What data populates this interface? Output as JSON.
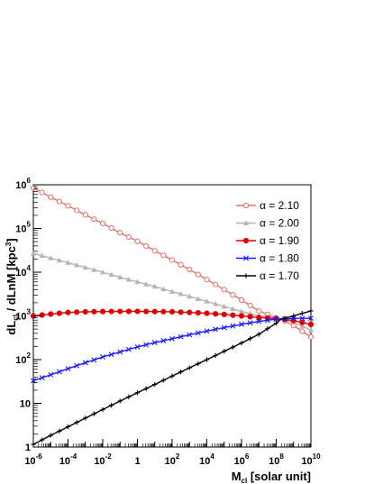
{
  "chart_data": {
    "type": "line",
    "xscale": "log",
    "yscale": "log",
    "xlim": [
      1e-06,
      10000000000.0
    ],
    "ylim": [
      1,
      1000000.0
    ],
    "xlabel": {
      "main": "M",
      "sub": "cl",
      "rest": " [solar unit]"
    },
    "ylabel": {
      "a": "dL",
      "sub": "cl",
      "b": " / dLnM  [kpc",
      "sup": "3",
      "c": "]"
    },
    "xticks": [
      {
        "base": "10",
        "exp": "-6",
        "v": 1e-06
      },
      {
        "base": "10",
        "exp": "-4",
        "v": 0.0001
      },
      {
        "base": "10",
        "exp": "-2",
        "v": 0.01
      },
      {
        "base": "1",
        "exp": "",
        "v": 1
      },
      {
        "base": "10",
        "exp": "2",
        "v": 100.0
      },
      {
        "base": "10",
        "exp": "4",
        "v": 10000.0
      },
      {
        "base": "10",
        "exp": "6",
        "v": 1000000.0
      },
      {
        "base": "10",
        "exp": "8",
        "v": 100000000.0
      },
      {
        "base": "10",
        "exp": "10",
        "v": 10000000000.0
      }
    ],
    "yticks": [
      {
        "base": "1",
        "exp": "",
        "v": 1
      },
      {
        "base": "10",
        "exp": "",
        "v": 10
      },
      {
        "base": "10",
        "exp": "2",
        "v": 100.0
      },
      {
        "base": "10",
        "exp": "3",
        "v": 1000.0
      },
      {
        "base": "10",
        "exp": "4",
        "v": 10000.0
      },
      {
        "base": "10",
        "exp": "5",
        "v": 100000.0
      },
      {
        "base": "10",
        "exp": "6",
        "v": 1000000.0
      }
    ],
    "grid": false,
    "legend_position": "top-right",
    "x_log10": [
      -6,
      -5,
      -4,
      -3,
      -2,
      -1,
      0,
      1,
      2,
      3,
      4,
      5,
      6,
      7,
      8,
      8.3,
      9,
      10
    ],
    "series": [
      {
        "name": "α = 2.10",
        "color": "#e0706a",
        "marker": "open-circle",
        "y": [
          850000,
          520000,
          330000,
          205000,
          130000,
          80000,
          51000,
          31000,
          19000,
          11500,
          6800,
          4000,
          2300,
          1300,
          900,
          850,
          600,
          330
        ]
      },
      {
        "name": "α = 2.00",
        "color": "#bdb3ad",
        "marker": "triangle",
        "y": [
          27000,
          21000,
          16500,
          12800,
          10000,
          7700,
          6000,
          4700,
          3600,
          2800,
          2150,
          1650,
          1270,
          1000,
          880,
          850,
          720,
          470
        ]
      },
      {
        "name": "α = 1.90",
        "color": "#e00000",
        "marker": "filled-circle",
        "y": [
          1000,
          1100,
          1200,
          1240,
          1260,
          1270,
          1270,
          1260,
          1240,
          1200,
          1150,
          1080,
          1000,
          920,
          870,
          850,
          780,
          640
        ]
      },
      {
        "name": "α = 1.80",
        "color": "#1a1aff",
        "marker": "x-cross",
        "y": [
          33,
          45,
          62,
          85,
          115,
          150,
          195,
          245,
          300,
          370,
          450,
          540,
          640,
          750,
          840,
          850,
          880,
          880
        ]
      },
      {
        "name": "α = 1.70",
        "color": "#000000",
        "marker": "plus",
        "y": [
          1.15,
          1.85,
          2.9,
          4.6,
          7.2,
          11.3,
          17.5,
          27,
          42,
          65,
          100,
          155,
          240,
          380,
          680,
          850,
          1000,
          1300
        ]
      }
    ]
  }
}
